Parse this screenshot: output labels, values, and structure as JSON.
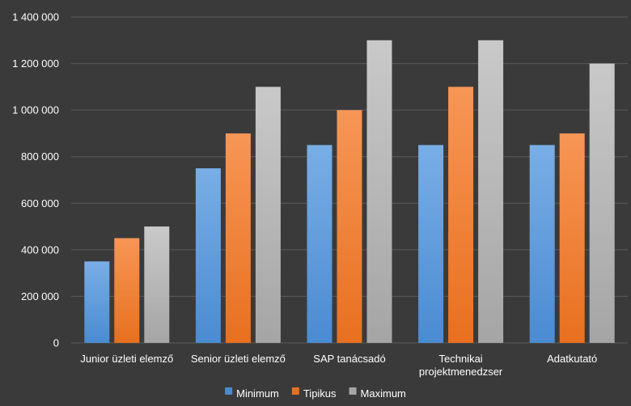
{
  "chart_data": {
    "type": "bar",
    "categories": [
      [
        "Junior üzleti elemző"
      ],
      [
        "Senior üzleti elemző"
      ],
      [
        "SAP tanácsadó"
      ],
      [
        "Technikai",
        "projektmenedzser"
      ],
      [
        "Adatkutató"
      ]
    ],
    "series": [
      {
        "name": "Minimum",
        "values": [
          350000,
          750000,
          850000,
          850000,
          850000
        ]
      },
      {
        "name": "Tipikus",
        "values": [
          450000,
          900000,
          1000000,
          1100000,
          900000
        ]
      },
      {
        "name": "Maximum",
        "values": [
          500000,
          1100000,
          1300000,
          1300000,
          1200000
        ]
      }
    ],
    "ylim": [
      0,
      1400000
    ],
    "yticks": [
      0,
      200000,
      400000,
      600000,
      800000,
      1000000,
      1200000,
      1400000
    ],
    "ytick_labels": [
      "0",
      "200 000",
      "400 000",
      "600 000",
      "800 000",
      "1 000 000",
      "1 200 000",
      "1 400 000"
    ],
    "grid": true,
    "legend_position": "bottom",
    "colors": {
      "background": "#3a3a3a",
      "grid": "#5a5a5a",
      "Minimum": [
        "#79aee6",
        "#4a8bd2"
      ],
      "Tipikus": [
        "#f79656",
        "#e8701f"
      ],
      "Maximum": [
        "#c9c9c9",
        "#a5a5a5"
      ]
    }
  }
}
